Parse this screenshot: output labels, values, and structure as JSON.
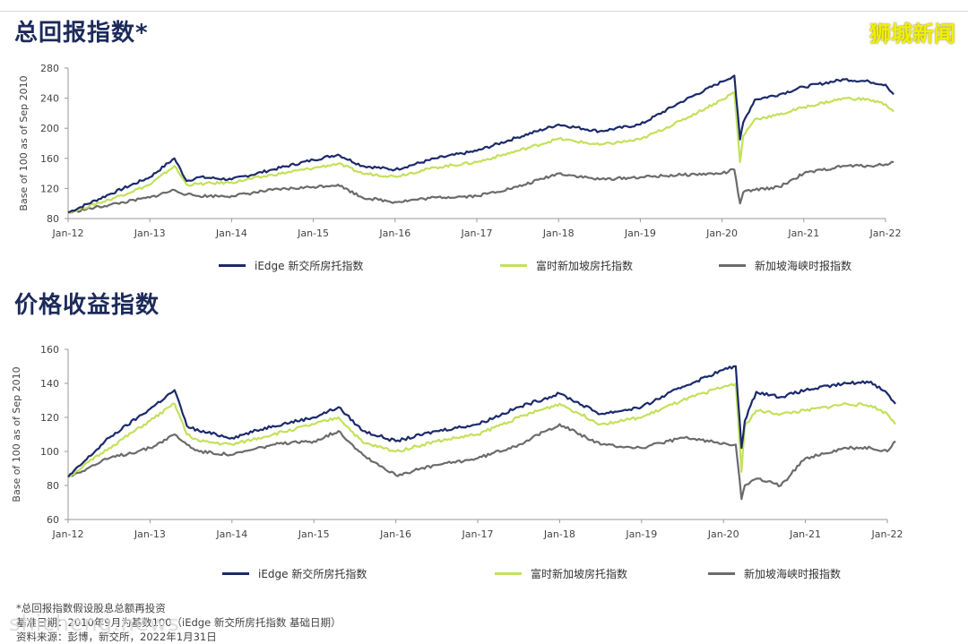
{
  "page": {
    "title_total": "总回报指数*",
    "title_price": "价格收益指数",
    "brand": "狮城新闻",
    "footnotes": [
      "*总回报指数假设股息总额再投资",
      "基准日期：2010年9月为基数100（iEdge 新交所房托指数 基础日期）",
      "资料来源：彭博，新交所，2022年1月31日"
    ],
    "watermark": "shicheng.news"
  },
  "colors": {
    "iedge": "#1b2a6b",
    "ftse": "#c3e15a",
    "st": "#6b6b6b",
    "axis": "#999999"
  },
  "chart_data": [
    {
      "type": "line",
      "title": "总回报指数*",
      "ylabel": "Base of 100 as of Sep 2010",
      "ylim": [
        80,
        280
      ],
      "yticks": [
        80,
        120,
        160,
        200,
        240,
        280
      ],
      "xticks": [
        "Jan-12",
        "Jan-13",
        "Jan-14",
        "Jan-15",
        "Jan-16",
        "Jan-17",
        "Jan-18",
        "Jan-19",
        "Jan-20",
        "Jan-21",
        "Jan-22"
      ],
      "x": [
        0,
        0.5,
        1,
        1.3,
        1.45,
        1.6,
        2,
        2.5,
        3,
        3.3,
        3.6,
        4,
        4.5,
        5,
        5.5,
        6,
        6.5,
        7,
        7.5,
        8,
        8.15,
        8.22,
        8.26,
        8.4,
        8.7,
        9,
        9.5,
        9.8,
        10,
        10.1
      ],
      "series": [
        {
          "name": "iEdge 新交所房托指数",
          "values": [
            88,
            112,
            135,
            160,
            130,
            135,
            132,
            145,
            158,
            165,
            150,
            145,
            160,
            170,
            188,
            205,
            196,
            205,
            235,
            262,
            270,
            185,
            208,
            238,
            245,
            255,
            265,
            262,
            258,
            245
          ]
        },
        {
          "name": "富时新加坡房托指数",
          "values": [
            88,
            105,
            125,
            150,
            125,
            126,
            128,
            138,
            147,
            153,
            140,
            136,
            148,
            155,
            170,
            186,
            178,
            185,
            210,
            238,
            248,
            155,
            190,
            212,
            218,
            228,
            240,
            238,
            232,
            222
          ]
        },
        {
          "name": "新加坡海峡时报指数",
          "values": [
            88,
            98,
            108,
            118,
            112,
            110,
            110,
            118,
            122,
            125,
            108,
            102,
            108,
            110,
            122,
            140,
            132,
            135,
            138,
            140,
            145,
            100,
            115,
            118,
            122,
            140,
            150,
            150,
            152,
            155
          ]
        }
      ]
    },
    {
      "type": "line",
      "title": "价格收益指数",
      "ylabel": "Base of 100 as of Sep 2010",
      "ylim": [
        60,
        160
      ],
      "yticks": [
        60,
        80,
        100,
        120,
        140,
        160
      ],
      "xticks": [
        "Jan-12",
        "Jan-13",
        "Jan-14",
        "Jan-15",
        "Jan-16",
        "Jan-17",
        "Jan-18",
        "Jan-19",
        "Jan-20",
        "Jan-21",
        "Jan-22"
      ],
      "x": [
        0,
        0.5,
        1,
        1.3,
        1.45,
        1.6,
        2,
        2.5,
        3,
        3.3,
        3.6,
        4,
        4.5,
        5,
        5.5,
        6,
        6.5,
        7,
        7.5,
        8,
        8.15,
        8.22,
        8.26,
        8.4,
        8.7,
        9,
        9.5,
        9.8,
        10,
        10.1
      ],
      "series": [
        {
          "name": "iEdge 新交所房托指数",
          "values": [
            85,
            108,
            125,
            136,
            115,
            112,
            108,
            115,
            120,
            126,
            112,
            106,
            112,
            116,
            126,
            134,
            122,
            126,
            138,
            148,
            150,
            102,
            118,
            135,
            132,
            136,
            140,
            141,
            134,
            128
          ]
        },
        {
          "name": "富时新加坡房托指数",
          "values": [
            85,
            102,
            118,
            128,
            110,
            106,
            104,
            110,
            116,
            120,
            105,
            100,
            106,
            110,
            120,
            128,
            116,
            120,
            130,
            138,
            140,
            88,
            115,
            124,
            122,
            124,
            128,
            127,
            122,
            116
          ]
        },
        {
          "name": "新加坡海峡时报指数",
          "values": [
            85,
            96,
            102,
            110,
            104,
            100,
            98,
            104,
            106,
            112,
            98,
            86,
            92,
            96,
            104,
            116,
            104,
            102,
            108,
            105,
            104,
            72,
            80,
            84,
            80,
            96,
            102,
            102,
            100,
            106
          ]
        }
      ]
    }
  ]
}
